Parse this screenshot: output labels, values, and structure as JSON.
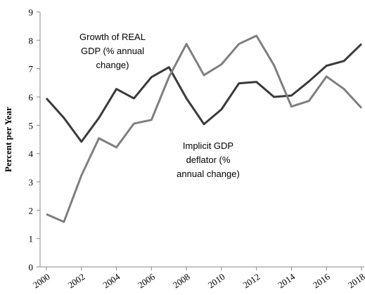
{
  "chart_data": {
    "type": "line",
    "y_label": "Percent per Year",
    "x": [
      2000,
      2001,
      2002,
      2003,
      2004,
      2005,
      2006,
      2007,
      2008,
      2009,
      2010,
      2011,
      2012,
      2013,
      2014,
      2015,
      2016,
      2017,
      2018
    ],
    "series": [
      {
        "color": "#3a3a3a",
        "values": [
          5.95,
          5.26,
          4.42,
          5.26,
          6.28,
          5.95,
          6.7,
          7.05,
          5.95,
          5.04,
          5.56,
          6.48,
          6.53,
          6.0,
          6.05,
          6.55,
          7.1,
          7.27,
          7.87
        ]
      },
      {
        "color": "#7f7f7f",
        "values": [
          1.86,
          1.59,
          3.23,
          4.54,
          4.22,
          5.06,
          5.19,
          6.7,
          7.87,
          6.77,
          7.15,
          7.87,
          8.16,
          7.12,
          5.66,
          5.86,
          6.72,
          6.28,
          5.61
        ]
      }
    ],
    "annotations": [
      {
        "lines": [
          "Growth of REAL",
          "GDP   (% annual",
          "change)"
        ]
      },
      {
        "lines": [
          "Implicit GDP",
          "deflator (%",
          "annual change)"
        ]
      }
    ],
    "xlim": [
      2000,
      2018
    ],
    "xticks": [
      2000,
      2002,
      2004,
      2006,
      2008,
      2010,
      2012,
      2014,
      2016,
      2018
    ],
    "ylim": [
      0,
      9
    ],
    "yticks": [
      0,
      1,
      2,
      3,
      4,
      5,
      6,
      7,
      8,
      9
    ]
  }
}
